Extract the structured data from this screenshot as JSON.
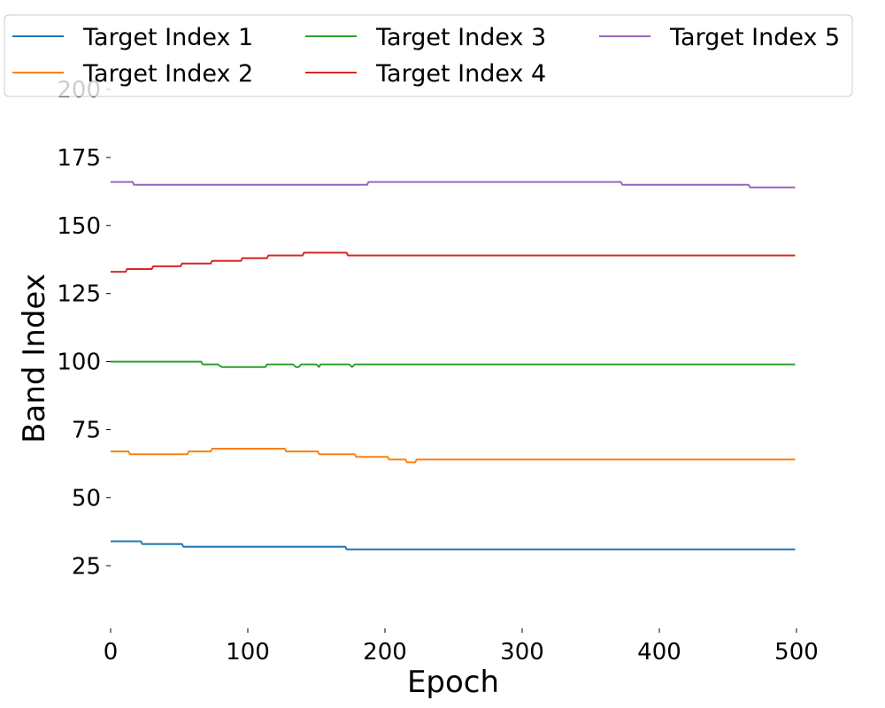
{
  "chart_data": {
    "type": "line",
    "title": "",
    "xlabel": "Epoch",
    "ylabel": "Band Index",
    "xlim": [
      0,
      500
    ],
    "ylim": [
      2,
      200
    ],
    "xticks": [
      0,
      100,
      200,
      300,
      400,
      500
    ],
    "yticks": [
      25,
      50,
      75,
      100,
      125,
      150,
      175,
      200
    ],
    "grid": false,
    "legend_position": "top",
    "series": [
      {
        "name": "Target Index 1",
        "color": "#1f77b4",
        "points": [
          [
            0,
            34
          ],
          [
            22,
            34
          ],
          [
            23,
            33
          ],
          [
            52,
            33
          ],
          [
            53,
            32
          ],
          [
            171,
            32
          ],
          [
            172,
            31
          ],
          [
            499,
            31
          ]
        ]
      },
      {
        "name": "Target Index 2",
        "color": "#ff7f0e",
        "points": [
          [
            0,
            67
          ],
          [
            13,
            67
          ],
          [
            14,
            66
          ],
          [
            56,
            66
          ],
          [
            57,
            67
          ],
          [
            73,
            67
          ],
          [
            74,
            68
          ],
          [
            127,
            68
          ],
          [
            128,
            67
          ],
          [
            151,
            67
          ],
          [
            152,
            66
          ],
          [
            178,
            66
          ],
          [
            179,
            65
          ],
          [
            202,
            65
          ],
          [
            203,
            64
          ],
          [
            215,
            64
          ],
          [
            216,
            63
          ],
          [
            222,
            63
          ],
          [
            223,
            64
          ],
          [
            499,
            64
          ]
        ]
      },
      {
        "name": "Target Index 3",
        "color": "#2ca02c",
        "points": [
          [
            0,
            100
          ],
          [
            66,
            100
          ],
          [
            67,
            99
          ],
          [
            78,
            99
          ],
          [
            81,
            98
          ],
          [
            113,
            98
          ],
          [
            114,
            99
          ],
          [
            133,
            99
          ],
          [
            135,
            98
          ],
          [
            137,
            98
          ],
          [
            139,
            99
          ],
          [
            150,
            99
          ],
          [
            152,
            98
          ],
          [
            153,
            99
          ],
          [
            174,
            99
          ],
          [
            176,
            98
          ],
          [
            178,
            99
          ],
          [
            499,
            99
          ]
        ]
      },
      {
        "name": "Target Index 4",
        "color": "#d62728",
        "points": [
          [
            0,
            133
          ],
          [
            11,
            133
          ],
          [
            12,
            134
          ],
          [
            30,
            134
          ],
          [
            31,
            135
          ],
          [
            51,
            135
          ],
          [
            52,
            136
          ],
          [
            73,
            136
          ],
          [
            74,
            137
          ],
          [
            95,
            137
          ],
          [
            96,
            138
          ],
          [
            114,
            138
          ],
          [
            115,
            139
          ],
          [
            140,
            139
          ],
          [
            141,
            140
          ],
          [
            172,
            140
          ],
          [
            173,
            139
          ],
          [
            499,
            139
          ]
        ]
      },
      {
        "name": "Target Index 5",
        "color": "#9467bd",
        "points": [
          [
            0,
            166
          ],
          [
            16,
            166
          ],
          [
            17,
            165
          ],
          [
            187,
            165
          ],
          [
            188,
            166
          ],
          [
            372,
            166
          ],
          [
            373,
            165
          ],
          [
            465,
            165
          ],
          [
            466,
            164
          ],
          [
            499,
            164
          ]
        ]
      }
    ]
  }
}
